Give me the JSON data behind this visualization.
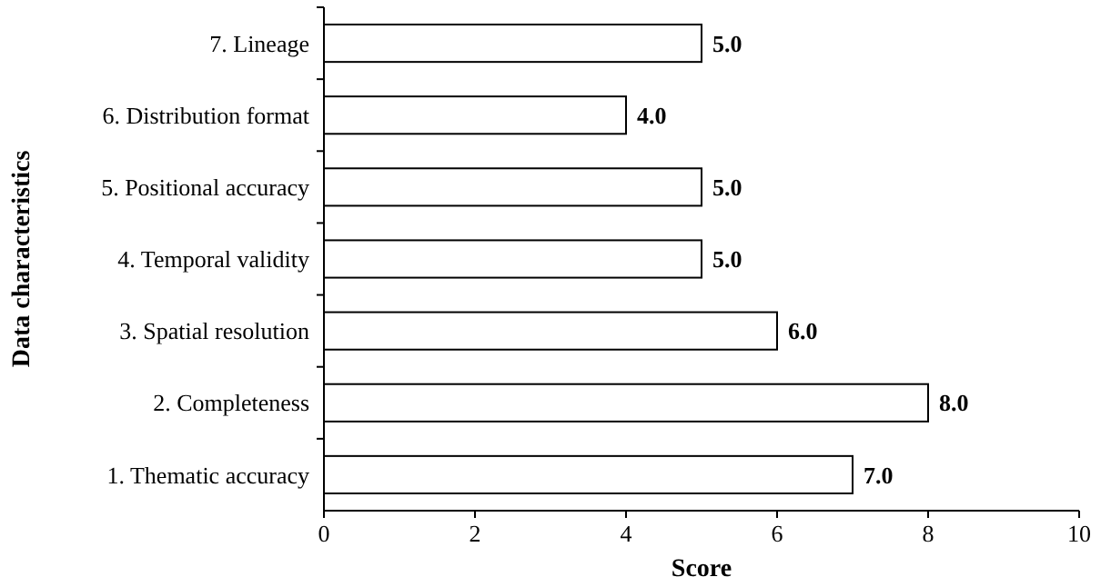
{
  "chart_data": {
    "type": "bar",
    "orientation": "horizontal",
    "xlabel": "Score",
    "ylabel": "Data characteristics",
    "categories": [
      "7. Lineage",
      "6. Distribution format",
      "5. Positional accuracy",
      "4. Temporal validity",
      "3. Spatial resolution",
      "2. Completeness",
      "1. Thematic accuracy"
    ],
    "values": [
      5,
      4,
      5,
      5,
      6,
      8,
      7
    ],
    "value_labels": [
      "5.0",
      "4.0",
      "5.0",
      "5.0",
      "6.0",
      "8.0",
      "7.0"
    ],
    "color": "#ffffff",
    "xlim": [
      0,
      10
    ],
    "xticks": [
      0,
      2,
      4,
      6,
      8,
      10
    ],
    "grid": false
  }
}
